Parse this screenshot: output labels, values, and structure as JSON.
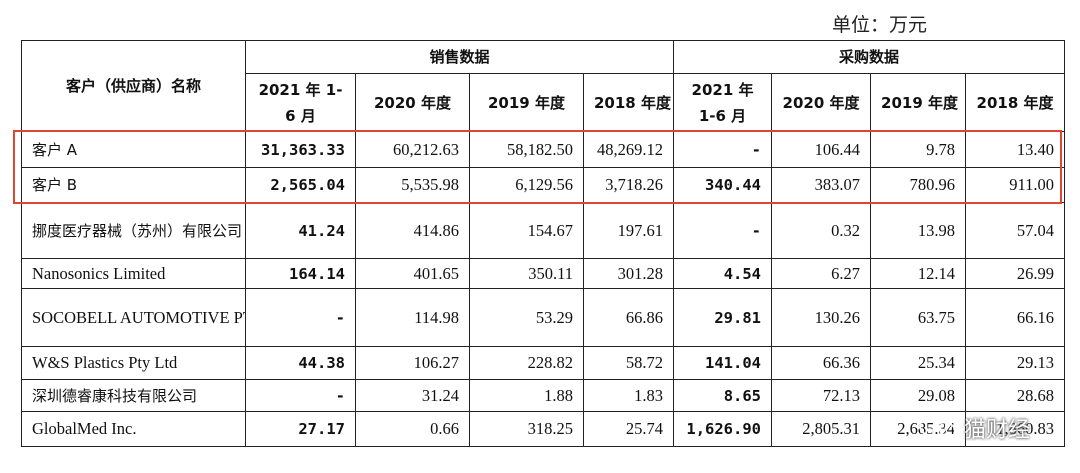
{
  "unit_label": "单位：万元",
  "header": {
    "customer_name": "客户（供应商）名称",
    "sales_group": "销售数据",
    "purchase_group": "采购数据",
    "sales_periods": [
      "2021 年 1-6 月",
      "2020 年度",
      "2019 年度",
      "2018 年度"
    ],
    "purchase_periods": [
      "2021 年 1-6 月",
      "2020 年度",
      "2019 年度",
      "2018 年度"
    ]
  },
  "rows": [
    {
      "name": "客户 A",
      "sales": [
        "31,363.33",
        "60,212.63",
        "58,182.50",
        "48,269.12"
      ],
      "purchases": [
        "-",
        "106.44",
        "9.78",
        "13.40"
      ]
    },
    {
      "name": "客户 B",
      "sales": [
        "2,565.04",
        "5,535.98",
        "6,129.56",
        "3,718.26"
      ],
      "purchases": [
        "340.44",
        "383.07",
        "780.96",
        "911.00"
      ]
    },
    {
      "name": "挪度医疗器械（苏州）有限公司",
      "sales": [
        "41.24",
        "414.86",
        "154.67",
        "197.61"
      ],
      "purchases": [
        "-",
        "0.32",
        "13.98",
        "57.04"
      ]
    },
    {
      "name": "Nanosonics Limited",
      "sales": [
        "164.14",
        "401.65",
        "350.11",
        "301.28"
      ],
      "purchases": [
        "4.54",
        "6.27",
        "12.14",
        "26.99"
      ]
    },
    {
      "name": "SOCOBELL AUTOMOTIVE PTY LTD",
      "sales": [
        "-",
        "114.98",
        "53.29",
        "66.86"
      ],
      "purchases": [
        "29.81",
        "130.26",
        "63.75",
        "66.16"
      ]
    },
    {
      "name": "W&S Plastics Pty Ltd",
      "sales": [
        "44.38",
        "106.27",
        "228.82",
        "58.72"
      ],
      "purchases": [
        "141.04",
        "66.36",
        "25.34",
        "29.13"
      ]
    },
    {
      "name": "深圳德睿康科技有限公司",
      "sales": [
        "-",
        "31.24",
        "1.88",
        "1.83"
      ],
      "purchases": [
        "8.65",
        "72.13",
        "29.08",
        "28.68"
      ]
    },
    {
      "name": "GlobalMed Inc.",
      "sales": [
        "27.17",
        "0.66",
        "318.25",
        "25.74"
      ],
      "purchases": [
        "1,626.90",
        "2,805.31",
        "2,685.34",
        "1,860.83"
      ]
    }
  ],
  "highlight_color": "#e0462f",
  "watermark": {
    "text": "猫财经",
    "icon": "wechat-icon"
  }
}
